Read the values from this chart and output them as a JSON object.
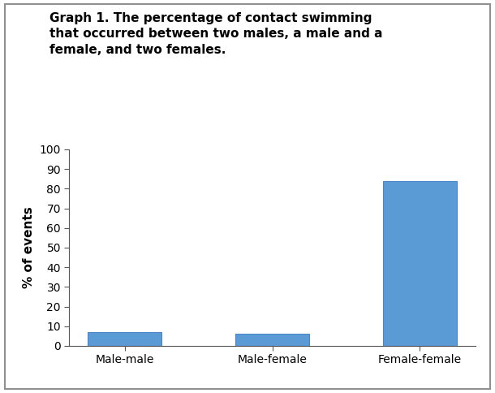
{
  "categories": [
    "Male-male",
    "Male-female",
    "Female-female"
  ],
  "values": [
    7.0,
    6.0,
    84.0
  ],
  "bar_color": "#5B9BD5",
  "bar_edgecolor": "#4A86C8",
  "title_line1": "Graph 1. The percentage of contact swimming",
  "title_line2": "that occurred between two males, a male and a",
  "title_line3": "female, and two females.",
  "ylabel": "% of events",
  "ylim": [
    0,
    100
  ],
  "yticks": [
    0,
    10,
    20,
    30,
    40,
    50,
    60,
    70,
    80,
    90,
    100
  ],
  "title_fontsize": 11,
  "label_fontsize": 11,
  "tick_fontsize": 10,
  "background_color": "#FFFFFF",
  "fig_border_color": "#909090",
  "bar_width": 0.5
}
